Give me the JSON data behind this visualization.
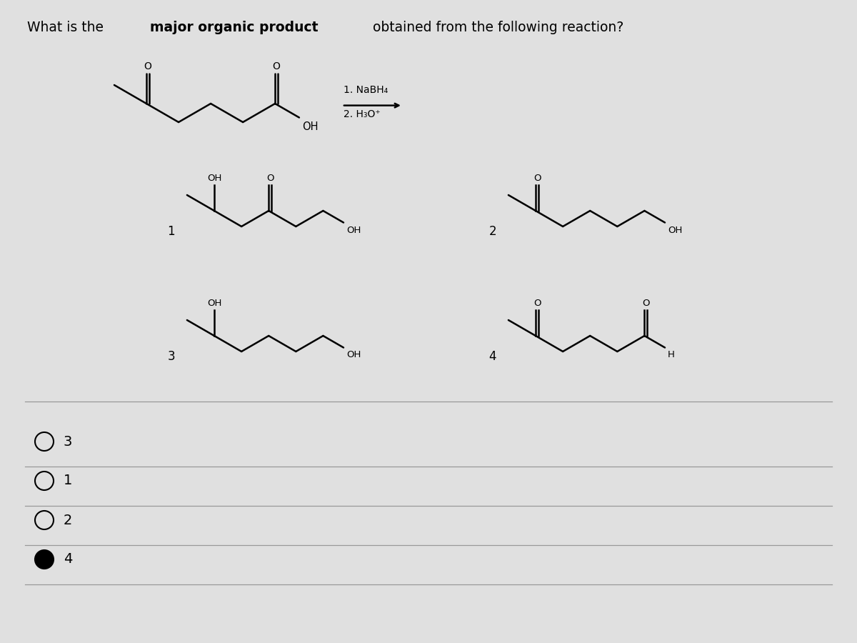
{
  "bg_color": "#e0e0e0",
  "line_color": "#000000",
  "text_color": "#000000",
  "reagents_line1": "1. NaBH₄",
  "reagents_line2": "2. H₃O⁺",
  "choices": [
    "3",
    "1",
    "2",
    "4"
  ],
  "selected_choice": "4",
  "title_parts": [
    {
      "text": "What is the ",
      "bold": false
    },
    {
      "text": "major organic product",
      "bold": true
    },
    {
      "text": " obtained from the following reaction?",
      "bold": false
    }
  ]
}
